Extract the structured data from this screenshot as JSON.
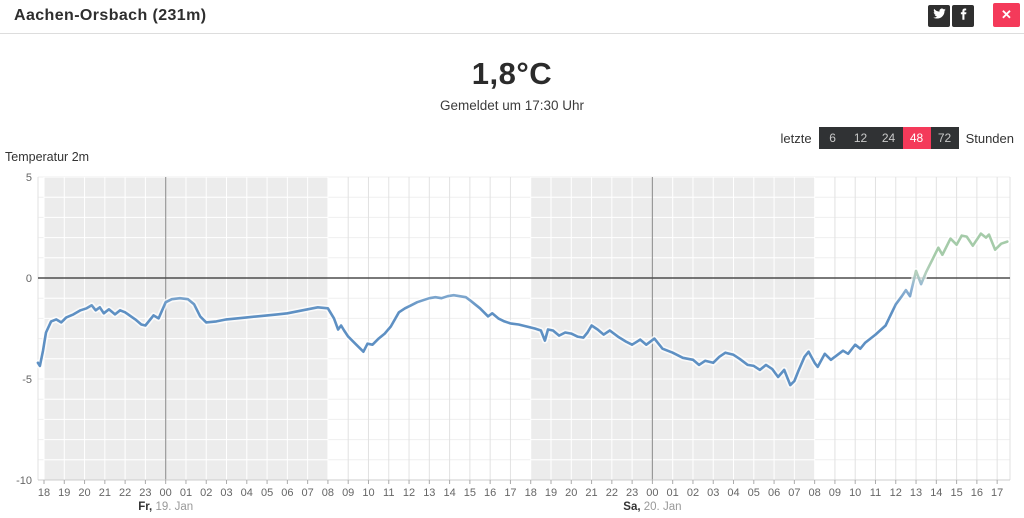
{
  "header": {
    "title": "Aachen-Orsbach (231m)",
    "close_label": "✕"
  },
  "current": {
    "temperature": "1,8°C",
    "reported": "Gemeldet um 17:30 Uhr"
  },
  "range_selector": {
    "prefix": "letzte",
    "suffix": "Stunden",
    "options": [
      "6",
      "12",
      "24",
      "48",
      "72"
    ],
    "active": "48"
  },
  "icons": [
    "twitter-icon",
    "facebook-icon",
    "close-icon"
  ],
  "colors": {
    "accent_red": "#f43a5a",
    "social_bg": "#2f2f2f",
    "selector_bg": "#303234",
    "selector_text": "#c9c9c9",
    "selector_active_text": "#ffffff",
    "line_blue": "#5e90c3",
    "line_green": "#a5cba9",
    "night_band": "#ececec",
    "grid_vertical": "#e2e2e2",
    "grid_horizontal": "#efefef",
    "grid_on_band": "#ffffff",
    "zero_line": "#4d4d4d",
    "midnight_line": "#999999",
    "axis_line": "#cccccc",
    "tick": "#aaaaaa",
    "axis_text": "#666666",
    "day_text_bold": "#333333",
    "day_text_rest": "#999999"
  },
  "chart_data": {
    "type": "line",
    "title": "Temperatur 2m",
    "ylabel": "Temperatur 2m (°C)",
    "ylim": [
      -10,
      5
    ],
    "yticks": [
      5,
      0,
      -5,
      -10
    ],
    "grid_step_c": 1,
    "hours": [
      "18",
      "19",
      "20",
      "21",
      "22",
      "23",
      "00",
      "01",
      "02",
      "03",
      "04",
      "05",
      "06",
      "07",
      "08",
      "09",
      "10",
      "11",
      "12",
      "13",
      "14",
      "15",
      "16",
      "17",
      "18",
      "19",
      "20",
      "21",
      "22",
      "23",
      "00",
      "01",
      "02",
      "03",
      "04",
      "05",
      "06",
      "07",
      "08",
      "09",
      "10",
      "11",
      "12",
      "13",
      "14",
      "15",
      "16",
      "17"
    ],
    "day_labels": [
      {
        "bold": "Fr,",
        "rest": " 19. Jan",
        "hour_index": 6
      },
      {
        "bold": "Sa,",
        "rest": " 20. Jan",
        "hour_index": 30
      }
    ],
    "night_bands": [
      [
        0,
        14
      ],
      [
        24,
        38
      ]
    ],
    "midnight_indices": [
      6,
      30
    ],
    "legend": "none",
    "series": [
      {
        "name": "Temperatur 2m",
        "points": [
          [
            -0.3,
            -4.2
          ],
          [
            -0.2,
            -4.35
          ],
          [
            -0.05,
            -3.6
          ],
          [
            0.1,
            -2.7
          ],
          [
            0.35,
            -2.15
          ],
          [
            0.6,
            -2.05
          ],
          [
            0.85,
            -2.2
          ],
          [
            1.1,
            -1.95
          ],
          [
            1.45,
            -1.8
          ],
          [
            1.8,
            -1.6
          ],
          [
            2.1,
            -1.5
          ],
          [
            2.35,
            -1.35
          ],
          [
            2.55,
            -1.6
          ],
          [
            2.75,
            -1.45
          ],
          [
            2.95,
            -1.75
          ],
          [
            3.2,
            -1.55
          ],
          [
            3.5,
            -1.8
          ],
          [
            3.75,
            -1.6
          ],
          [
            4.0,
            -1.7
          ],
          [
            4.5,
            -2.05
          ],
          [
            4.8,
            -2.3
          ],
          [
            5.0,
            -2.35
          ],
          [
            5.4,
            -1.85
          ],
          [
            5.65,
            -2.0
          ],
          [
            6.0,
            -1.2
          ],
          [
            6.3,
            -1.05
          ],
          [
            6.7,
            -1.0
          ],
          [
            7.1,
            -1.05
          ],
          [
            7.4,
            -1.3
          ],
          [
            7.7,
            -1.9
          ],
          [
            8.0,
            -2.2
          ],
          [
            8.5,
            -2.15
          ],
          [
            9.0,
            -2.05
          ],
          [
            9.5,
            -2.0
          ],
          [
            10.0,
            -1.95
          ],
          [
            10.5,
            -1.9
          ],
          [
            11.0,
            -1.85
          ],
          [
            11.5,
            -1.8
          ],
          [
            12.0,
            -1.75
          ],
          [
            12.5,
            -1.65
          ],
          [
            13.0,
            -1.55
          ],
          [
            13.5,
            -1.45
          ],
          [
            14.0,
            -1.5
          ],
          [
            14.3,
            -2.0
          ],
          [
            14.5,
            -2.55
          ],
          [
            14.65,
            -2.35
          ],
          [
            14.8,
            -2.6
          ],
          [
            15.0,
            -2.9
          ],
          [
            15.4,
            -3.3
          ],
          [
            15.75,
            -3.65
          ],
          [
            15.95,
            -3.25
          ],
          [
            16.2,
            -3.3
          ],
          [
            16.5,
            -3.0
          ],
          [
            16.8,
            -2.75
          ],
          [
            17.1,
            -2.4
          ],
          [
            17.5,
            -1.7
          ],
          [
            17.8,
            -1.5
          ],
          [
            18.1,
            -1.35
          ],
          [
            18.4,
            -1.2
          ],
          [
            18.7,
            -1.1
          ],
          [
            19.0,
            -1.0
          ],
          [
            19.3,
            -0.95
          ],
          [
            19.6,
            -1.0
          ],
          [
            19.9,
            -0.9
          ],
          [
            20.2,
            -0.85
          ],
          [
            20.5,
            -0.9
          ],
          [
            20.8,
            -0.95
          ],
          [
            21.0,
            -1.1
          ],
          [
            21.5,
            -1.5
          ],
          [
            21.9,
            -1.9
          ],
          [
            22.1,
            -1.75
          ],
          [
            22.4,
            -2.0
          ],
          [
            22.7,
            -2.15
          ],
          [
            23.0,
            -2.25
          ],
          [
            23.4,
            -2.3
          ],
          [
            23.8,
            -2.4
          ],
          [
            24.2,
            -2.5
          ],
          [
            24.5,
            -2.6
          ],
          [
            24.7,
            -3.1
          ],
          [
            24.85,
            -2.55
          ],
          [
            25.1,
            -2.6
          ],
          [
            25.4,
            -2.85
          ],
          [
            25.7,
            -2.7
          ],
          [
            26.0,
            -2.75
          ],
          [
            26.3,
            -2.9
          ],
          [
            26.6,
            -2.95
          ],
          [
            26.8,
            -2.7
          ],
          [
            27.0,
            -2.35
          ],
          [
            27.3,
            -2.55
          ],
          [
            27.6,
            -2.8
          ],
          [
            27.9,
            -2.6
          ],
          [
            28.3,
            -2.9
          ],
          [
            28.7,
            -3.15
          ],
          [
            29.0,
            -3.3
          ],
          [
            29.4,
            -3.05
          ],
          [
            29.7,
            -3.3
          ],
          [
            30.1,
            -3.0
          ],
          [
            30.5,
            -3.5
          ],
          [
            31.0,
            -3.7
          ],
          [
            31.5,
            -3.95
          ],
          [
            32.0,
            -4.05
          ],
          [
            32.3,
            -4.3
          ],
          [
            32.6,
            -4.1
          ],
          [
            33.0,
            -4.2
          ],
          [
            33.3,
            -3.9
          ],
          [
            33.6,
            -3.7
          ],
          [
            34.0,
            -3.8
          ],
          [
            34.3,
            -4.0
          ],
          [
            34.7,
            -4.3
          ],
          [
            35.0,
            -4.35
          ],
          [
            35.3,
            -4.55
          ],
          [
            35.6,
            -4.3
          ],
          [
            35.9,
            -4.5
          ],
          [
            36.2,
            -4.9
          ],
          [
            36.5,
            -4.55
          ],
          [
            36.8,
            -5.3
          ],
          [
            37.0,
            -5.1
          ],
          [
            37.2,
            -4.6
          ],
          [
            37.5,
            -3.9
          ],
          [
            37.7,
            -3.65
          ],
          [
            38.0,
            -4.2
          ],
          [
            38.15,
            -4.4
          ],
          [
            38.5,
            -3.75
          ],
          [
            38.8,
            -4.05
          ],
          [
            39.0,
            -3.9
          ],
          [
            39.4,
            -3.6
          ],
          [
            39.65,
            -3.75
          ],
          [
            40.0,
            -3.3
          ],
          [
            40.25,
            -3.5
          ],
          [
            40.5,
            -3.2
          ],
          [
            41.0,
            -2.8
          ],
          [
            41.5,
            -2.35
          ],
          [
            42.0,
            -1.3
          ],
          [
            42.3,
            -0.9
          ],
          [
            42.5,
            -0.6
          ],
          [
            42.7,
            -0.9
          ],
          [
            43.0,
            0.35
          ],
          [
            43.25,
            -0.3
          ],
          [
            43.5,
            0.3
          ],
          [
            43.8,
            0.9
          ],
          [
            44.1,
            1.5
          ],
          [
            44.3,
            1.15
          ],
          [
            44.7,
            1.95
          ],
          [
            45.0,
            1.65
          ],
          [
            45.25,
            2.1
          ],
          [
            45.5,
            2.05
          ],
          [
            45.8,
            1.6
          ],
          [
            46.2,
            2.2
          ],
          [
            46.45,
            2.0
          ],
          [
            46.6,
            2.15
          ],
          [
            46.9,
            1.4
          ],
          [
            47.2,
            1.7
          ],
          [
            47.5,
            1.8
          ]
        ]
      }
    ]
  }
}
